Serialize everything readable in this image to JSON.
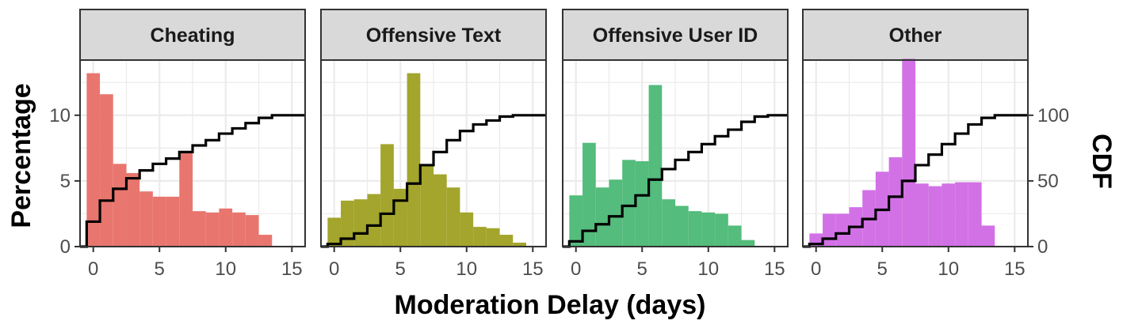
{
  "chart_data": {
    "type": "bar",
    "facet_titles": [
      "Cheating",
      "Offensive Text",
      "Offensive User ID",
      "Other"
    ],
    "xlabel": "Moderation Delay (days)",
    "ylabel": "Percentage",
    "ylabel_right": "CDF",
    "xlim": [
      -1,
      16
    ],
    "ylim": [
      0,
      14.2
    ],
    "ylim_right": [
      0,
      142
    ],
    "x_ticks": [
      0,
      5,
      10,
      15
    ],
    "y_ticks": [
      0,
      5,
      10
    ],
    "y_ticks_right": [
      0,
      50,
      100
    ],
    "bin_width": 1,
    "bin_starts": [
      -0.5,
      0.5,
      1.5,
      2.5,
      3.5,
      4.5,
      5.5,
      6.5,
      7.5,
      8.5,
      9.5,
      10.5,
      11.5,
      12.5,
      13.5,
      14.5
    ],
    "grid": true,
    "series": [
      {
        "name": "Cheating",
        "color": "#E8766E",
        "values": [
          13.2,
          11.6,
          6.3,
          5.6,
          4.2,
          3.8,
          3.8,
          7.2,
          2.7,
          2.6,
          2.9,
          2.6,
          2.4,
          0.9,
          0,
          0
        ],
        "cdf": [
          0,
          19,
          35,
          44,
          52,
          58,
          63,
          67,
          72,
          77,
          81,
          86,
          90,
          94,
          98,
          100,
          100
        ]
      },
      {
        "name": "Offensive Text",
        "color": "#A3A52C",
        "values": [
          2.2,
          3.5,
          3.6,
          4.0,
          7.8,
          4.4,
          13.2,
          6.2,
          5.5,
          4.5,
          2.6,
          1.5,
          1.4,
          0.9,
          0.3,
          0
        ],
        "cdf": [
          0,
          2,
          6,
          10,
          16,
          25,
          35,
          48,
          62,
          72,
          81,
          88,
          93,
          96,
          99,
          100,
          100
        ]
      },
      {
        "name": "Offensive User ID",
        "color": "#54BC7C",
        "values": [
          3.9,
          7.9,
          4.5,
          5.1,
          6.6,
          6.5,
          12.3,
          3.6,
          3.1,
          2.7,
          2.6,
          2.5,
          1.6,
          0.5,
          0,
          0
        ],
        "cdf": [
          0,
          4,
          12,
          17,
          23,
          31,
          39,
          51,
          59,
          66,
          72,
          78,
          84,
          89,
          95,
          99,
          100
        ]
      },
      {
        "name": "Other",
        "color": "#D271E6",
        "values": [
          1.0,
          2.5,
          2.5,
          3.0,
          4.3,
          5.7,
          6.8,
          14.3,
          4.8,
          4.6,
          4.8,
          4.9,
          4.9,
          1.6,
          0,
          0
        ],
        "cdf": [
          0,
          2,
          6,
          10,
          15,
          21,
          28,
          38,
          50,
          62,
          70,
          78,
          86,
          93,
          98,
          100,
          100
        ]
      }
    ]
  }
}
